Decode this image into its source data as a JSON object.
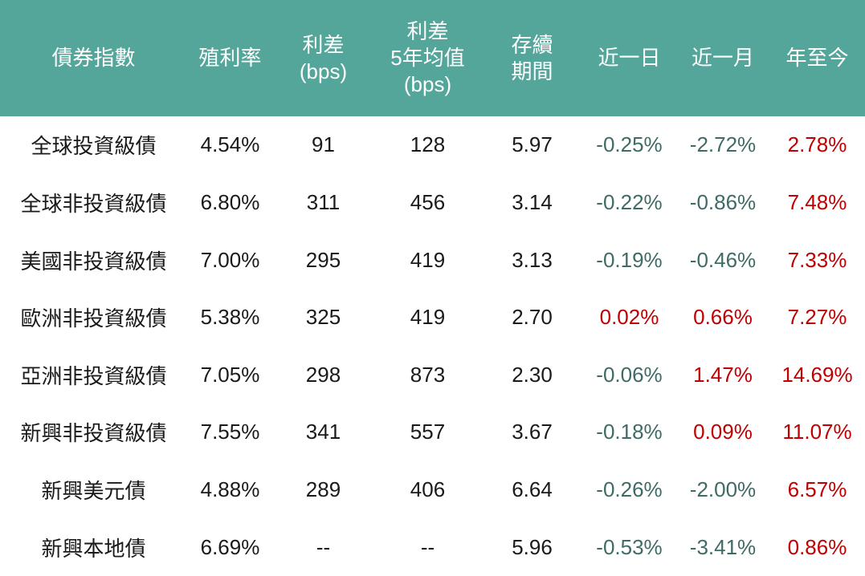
{
  "chart_data": {
    "type": "table",
    "columns": [
      {
        "id": "index-name",
        "label": "債券指數"
      },
      {
        "id": "yield",
        "label": "殖利率"
      },
      {
        "id": "spread-bps",
        "label": "利差\n(bps)"
      },
      {
        "id": "spread-5y-avg-bps",
        "label": "利差\n5年均值\n(bps)"
      },
      {
        "id": "duration",
        "label": "存續\n期間"
      },
      {
        "id": "change-1d",
        "label": "近一日"
      },
      {
        "id": "change-1m",
        "label": "近一月"
      },
      {
        "id": "change-ytd",
        "label": "年至今"
      }
    ],
    "rows": [
      [
        "全球投資級債",
        "4.54%",
        "91",
        "128",
        "5.97",
        "-0.25%",
        "-2.72%",
        "2.78%"
      ],
      [
        "全球非投資級債",
        "6.80%",
        "311",
        "456",
        "3.14",
        "-0.22%",
        "-0.86%",
        "7.48%"
      ],
      [
        "美國非投資級債",
        "7.00%",
        "295",
        "419",
        "3.13",
        "-0.19%",
        "-0.46%",
        "7.33%"
      ],
      [
        "歐洲非投資級債",
        "5.38%",
        "325",
        "419",
        "2.70",
        "0.02%",
        "0.66%",
        "7.27%"
      ],
      [
        "亞洲非投資級債",
        "7.05%",
        "298",
        "873",
        "2.30",
        "-0.06%",
        "1.47%",
        "14.69%"
      ],
      [
        "新興非投資級債",
        "7.55%",
        "341",
        "557",
        "3.67",
        "-0.18%",
        "0.09%",
        "11.07%"
      ],
      [
        "新興美元債",
        "4.88%",
        "289",
        "406",
        "6.64",
        "-0.26%",
        "-2.00%",
        "6.57%"
      ],
      [
        "新興本地債",
        "6.69%",
        "--",
        "--",
        "5.96",
        "-0.53%",
        "-3.41%",
        "0.86%"
      ]
    ],
    "change_columns_start_index": 5
  },
  "colors": {
    "header_bg": "#54A59A",
    "header_text": "#FFFFFF",
    "body_text": "#1A1A1A",
    "negative_change": "#3F6B66",
    "positive_change": "#C00000",
    "background": "#FFFFFF"
  }
}
